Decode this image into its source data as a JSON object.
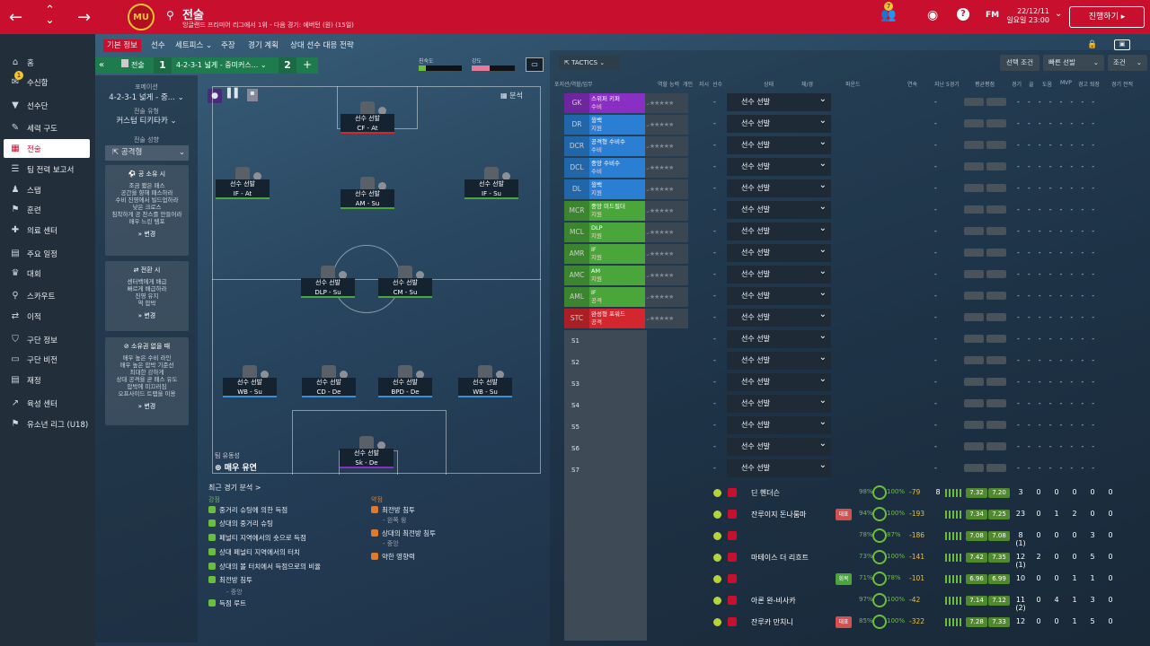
{
  "topbar": {
    "title": "전술",
    "subtitle": "잉글랜드 프리미어 리그에서 1위 - 다음 경기: 에버턴 (원) (15일)",
    "mail_count": "7",
    "fm": "FM",
    "date1": "22/12/11",
    "date2": "일요일 23:00",
    "continue": "진행하기",
    "crest": "MU"
  },
  "sidebar": [
    {
      "label": "홈",
      "icon": "home-icon"
    },
    {
      "label": "수신함",
      "icon": "inbox-icon",
      "badge": "1"
    },
    {
      "label": "선수단",
      "icon": "shirt-icon"
    },
    {
      "label": "세력 구도",
      "icon": "chat-icon"
    },
    {
      "label": "전술",
      "icon": "tactics-icon",
      "active": true
    },
    {
      "label": "팀 전력 보고서",
      "icon": "report-icon"
    },
    {
      "label": "스탭",
      "icon": "staff-icon"
    },
    {
      "label": "훈련",
      "icon": "training-icon"
    },
    {
      "label": "의료 센터",
      "icon": "medical-icon"
    },
    {
      "label": "주요 일정",
      "icon": "calendar-icon"
    },
    {
      "label": "대회",
      "icon": "trophy-icon"
    },
    {
      "label": "스카우트",
      "icon": "search-icon"
    },
    {
      "label": "이적",
      "icon": "transfer-icon"
    },
    {
      "label": "구단 정보",
      "icon": "shield-icon"
    },
    {
      "label": "구단 비전",
      "icon": "vision-icon"
    },
    {
      "label": "재정",
      "icon": "finance-icon"
    },
    {
      "label": "육성 센터",
      "icon": "development-icon"
    },
    {
      "label": "유소년 리그 (U18)",
      "icon": "youth-icon"
    }
  ],
  "subnav": [
    "기본 정보",
    "선수",
    "세트피스 ⌄",
    "주장",
    "경기 계획",
    "상대 선수 대응 전략"
  ],
  "tacticbar": {
    "collapse": "«",
    "tactic_label": "전술",
    "slot1": "1",
    "formation": "4-2-3-1 넓게 - 중미커스...",
    "slot2": "2",
    "add": "+",
    "familiarity": "친숙도",
    "intensity": "강도"
  },
  "left": {
    "formation_label": "포메이션",
    "formation": "4-2-3-1 넓게 - 중...",
    "style_label": "전술 유형",
    "style": "커스텀 티키타카",
    "mentality_label": "전술 성향",
    "mentality": "공격형",
    "box1": {
      "title": "공 소유 시",
      "lines": [
        "조금 짧은 패스",
        "공간을 향해 패스하라",
        "수비 진영에서 빌드업하라",
        "낮은 크로스",
        "침착하게 공 찬스를 만들어라",
        "매우 느린 템포"
      ],
      "change": "변경"
    },
    "box2": {
      "title": "전환 시",
      "lines": [
        "센터백에게 배급",
        "빠르게 배급하라",
        "진영 유지",
        "역 압박"
      ],
      "change": "변경"
    },
    "box3": {
      "title": "소유권 없을 때",
      "lines": [
        "매우 높은 수비 라인",
        "매우 높은 압박 기준선",
        "최대한 강하게",
        "상대 공격을 곧 패스 유도",
        "압박에 미끄러짐",
        "오프사이드 트랩을 이용"
      ],
      "change": "변경"
    }
  },
  "pitch": {
    "analysis_tab": "분석",
    "fluidity_label": "팀 유동성",
    "fluidity": "매우 유연",
    "players": [
      {
        "name": "선수 선발",
        "role": "CF - At"
      },
      {
        "name": "선수 선발",
        "role": "IF - At"
      },
      {
        "name": "선수 선발",
        "role": "AM - Su"
      },
      {
        "name": "선수 선발",
        "role": "IF - Su"
      },
      {
        "name": "선수 선발",
        "role": "DLP - Su"
      },
      {
        "name": "선수 선발",
        "role": "CM - Su"
      },
      {
        "name": "선수 선발",
        "role": "WB - Su"
      },
      {
        "name": "선수 선발",
        "role": "CD - De"
      },
      {
        "name": "선수 선발",
        "role": "BPD - De"
      },
      {
        "name": "선수 선발",
        "role": "WB - Su"
      },
      {
        "name": "선수 선발",
        "role": "Sk - De"
      }
    ]
  },
  "analysis": {
    "title": "최근 경기 분석 >",
    "strengths_label": "강점",
    "strengths": [
      "중거리 슈팅에 의한 득점",
      "상대의 중거리 슈팅",
      "페널티 지역에서의 숏으로 득점",
      "상대 페널티 지역에서의 터치",
      "상대의 볼 터치에서 득점으로의 비율",
      "최전방 침투",
      "득점 루트"
    ],
    "str_sub": "- 중앙",
    "weak_label": "약점",
    "weak": [
      "최전방 침투",
      "상대의 최전방 침투",
      "약한 영향력"
    ],
    "weak_sub1": "- 왼쪽 윙",
    "weak_sub2": "- 중앙"
  },
  "right": {
    "tactics_btn": "TACTICS ⌄",
    "select_cond": "선택 조건",
    "quick_pick": "빠른 선발",
    "cond": "조건",
    "cols": [
      "포지션/역할/임무",
      "역할 능력",
      "개인",
      "지시",
      "선수",
      "상태",
      "체/경",
      "파운드",
      "연속",
      "지난 5경기",
      "평균평점",
      "경기",
      "골",
      "도움",
      "MVP",
      "경고",
      "퇴장",
      "경기 전적"
    ],
    "rows": [
      {
        "pos": "GK",
        "role": "스위퍼 키퍼",
        "duty": "수비",
        "color": "#8a2fc4"
      },
      {
        "pos": "DR",
        "role": "윙백",
        "duty": "지원",
        "color": "#2a7fd4"
      },
      {
        "pos": "DCR",
        "role": "공격형 수비수",
        "duty": "수비",
        "color": "#2a7fd4"
      },
      {
        "pos": "DCL",
        "role": "중앙 수비수",
        "duty": "수비",
        "color": "#2a7fd4"
      },
      {
        "pos": "DL",
        "role": "윙백",
        "duty": "지원",
        "color": "#2a7fd4"
      },
      {
        "pos": "MCR",
        "role": "중앙 미드필더",
        "duty": "지원",
        "color": "#4aa63a"
      },
      {
        "pos": "MCL",
        "role": "DLP",
        "duty": "지원",
        "color": "#4aa63a"
      },
      {
        "pos": "AMR",
        "role": "IF",
        "duty": "지원",
        "color": "#4aa63a"
      },
      {
        "pos": "AMC",
        "role": "AM",
        "duty": "지원",
        "color": "#4aa63a"
      },
      {
        "pos": "AML",
        "role": "IF",
        "duty": "공격",
        "color": "#4aa63a"
      },
      {
        "pos": "STC",
        "role": "완성형 포워드",
        "duty": "공격",
        "color": "#d4262e"
      }
    ],
    "subs": [
      "S1",
      "S2",
      "S3",
      "S4",
      "S5",
      "S6",
      "S7"
    ],
    "select_label": "선수 선발",
    "players": [
      {
        "name": "딘 헨더슨",
        "tag": "",
        "cond": "98%",
        "sharp": "100%",
        "ch": "-79",
        "r1": "7.32",
        "r2": "7.20",
        "stats": [
          "8",
          "3",
          "0",
          "0",
          "0",
          "0",
          "0"
        ]
      },
      {
        "name": "잔루이지 돈나룸마",
        "tag": "대표",
        "cond": "94%",
        "sharp": "100%",
        "ch": "-193",
        "r1": "7.34",
        "r2": "7.25",
        "stats": [
          "",
          "23",
          "0",
          "1",
          "2",
          "0",
          "0"
        ]
      },
      {
        "name": "",
        "tag": "",
        "cond": "78%",
        "sharp": "87%",
        "ch": "-186",
        "r1": "7.08",
        "r2": "7.08",
        "stats": [
          "",
          "8 (1)",
          "0",
          "0",
          "0",
          "3",
          "0"
        ]
      },
      {
        "name": "마테이스 더 리흐트",
        "tag": "",
        "cond": "73%",
        "sharp": "100%",
        "ch": "-141",
        "r1": "7.42",
        "r2": "7.35",
        "stats": [
          "",
          "12 (1)",
          "2",
          "0",
          "0",
          "5",
          "0"
        ]
      },
      {
        "name": "",
        "tag": "회복",
        "cond": "71%",
        "sharp": "78%",
        "ch": "-101",
        "r1": "6.96",
        "r2": "6.99",
        "stats": [
          "",
          "10",
          "0",
          "0",
          "1",
          "1",
          "0"
        ]
      },
      {
        "name": "아론 완-비사카",
        "tag": "",
        "cond": "97%",
        "sharp": "100%",
        "ch": "-42",
        "r1": "7.14",
        "r2": "7.12",
        "stats": [
          "",
          "11 (2)",
          "0",
          "4",
          "1",
          "3",
          "0"
        ]
      },
      {
        "name": "잔루카 만치니",
        "tag": "대표",
        "cond": "85%",
        "sharp": "100%",
        "ch": "-322",
        "r1": "7.28",
        "r2": "7.33",
        "stats": [
          "",
          "12",
          "0",
          "0",
          "1",
          "5",
          "0"
        ]
      }
    ]
  }
}
